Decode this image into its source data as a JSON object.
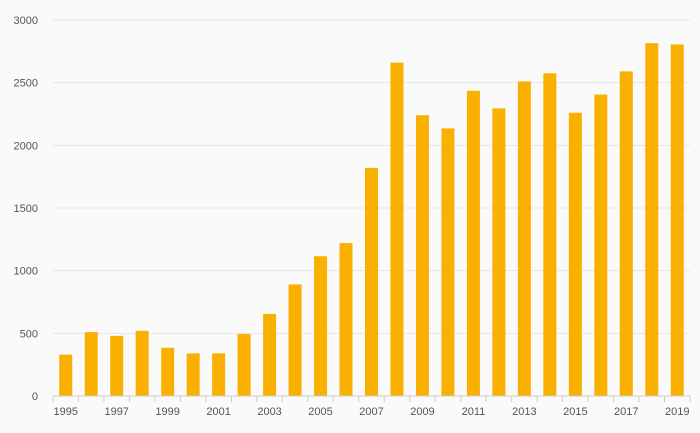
{
  "chart_data": {
    "type": "bar",
    "title": "",
    "xlabel": "",
    "ylabel": "",
    "categories": [
      "1995",
      "1996",
      "1997",
      "1998",
      "1999",
      "2000",
      "2001",
      "2002",
      "2003",
      "2004",
      "2005",
      "2006",
      "2007",
      "2008",
      "2009",
      "2010",
      "2011",
      "2012",
      "2013",
      "2014",
      "2015",
      "2016",
      "2017",
      "2018",
      "2019"
    ],
    "x_tick_labels": [
      "1995",
      "1997",
      "1999",
      "2001",
      "2003",
      "2005",
      "2007",
      "2009",
      "2011",
      "2013",
      "2015",
      "2017",
      "2019"
    ],
    "y_ticks": [
      "0",
      "500",
      "1000",
      "1500",
      "2000",
      "2500",
      "3000"
    ],
    "values": [
      330,
      510,
      480,
      520,
      385,
      340,
      340,
      495,
      655,
      890,
      1115,
      1220,
      1820,
      2660,
      2240,
      2135,
      2435,
      2295,
      2510,
      2575,
      2260,
      2405,
      2590,
      2815,
      2805
    ],
    "ylim": [
      0,
      3000
    ],
    "grid": true,
    "bar_color": "#F9B000"
  }
}
